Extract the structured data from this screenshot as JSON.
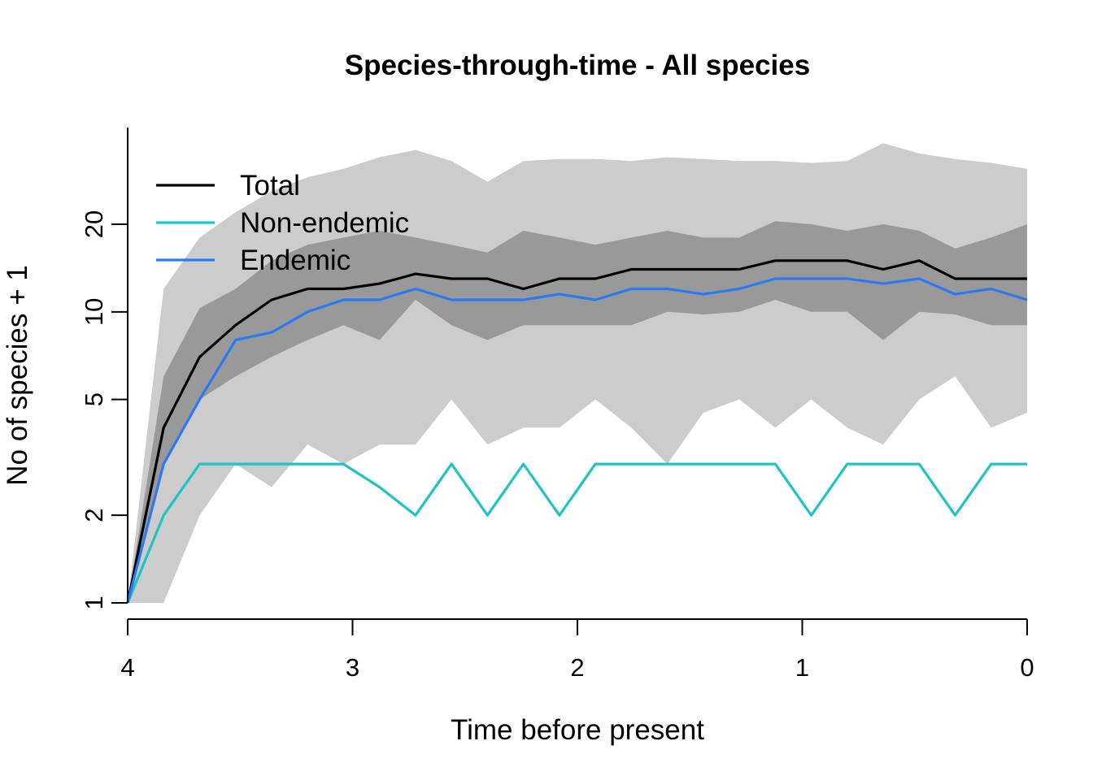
{
  "chart_data": {
    "type": "line",
    "title": "Species-through-time - All species",
    "xlabel": "Time before present",
    "ylabel": "No of species + 1",
    "xlim": [
      4,
      0
    ],
    "ylim": [
      1,
      36
    ],
    "y_scale": "log",
    "x_ticks": [
      4,
      3,
      2,
      1,
      0
    ],
    "y_ticks": [
      1,
      2,
      5,
      10,
      20
    ],
    "grid": false,
    "legend_position": "top-left",
    "colors": {
      "outer_band": "#cccccc",
      "inner_band": "#999999",
      "Total": "#000000",
      "Non-endemic": "#1fc4c4",
      "Endemic": "#2a7bf2"
    },
    "x": [
      4.0,
      3.84,
      3.68,
      3.52,
      3.36,
      3.2,
      3.04,
      2.88,
      2.72,
      2.56,
      2.4,
      2.24,
      2.08,
      1.92,
      1.76,
      1.6,
      1.44,
      1.28,
      1.12,
      0.96,
      0.8,
      0.64,
      0.48,
      0.32,
      0.16,
      0.0
    ],
    "series": [
      {
        "name": "Total",
        "values": [
          1,
          4,
          7,
          9,
          11,
          12,
          12,
          12.5,
          13.5,
          13,
          13,
          12,
          13,
          13,
          14,
          14,
          14,
          14,
          15,
          15,
          15,
          14,
          15,
          13,
          13,
          13
        ]
      },
      {
        "name": "Non-endemic",
        "values": [
          1,
          2,
          3,
          3,
          3,
          3,
          3,
          2.5,
          2,
          3,
          2,
          3,
          2,
          3,
          3,
          3,
          3,
          3,
          3,
          2,
          3,
          3,
          3,
          2,
          3,
          3
        ]
      },
      {
        "name": "Endemic",
        "values": [
          1,
          3,
          5,
          8,
          8.5,
          10,
          11,
          11,
          12,
          11,
          11,
          11,
          11.5,
          11,
          12,
          12,
          11.5,
          12,
          13,
          13,
          13,
          12.5,
          13,
          11.5,
          12,
          11
        ]
      }
    ],
    "bands": {
      "outer_upper": [
        1,
        12,
        18,
        22,
        26,
        29,
        31,
        34,
        36,
        33,
        28,
        33,
        33.5,
        33.5,
        33,
        34,
        33.5,
        33,
        33,
        32.5,
        33,
        38,
        35,
        33.5,
        32.5,
        31
      ],
      "outer_lower": [
        1,
        1,
        2,
        3,
        2.5,
        3.5,
        3,
        3.5,
        3.5,
        5,
        3.5,
        4,
        4,
        5,
        4,
        3,
        4.5,
        5,
        4,
        5,
        4,
        3.5,
        5,
        6,
        4,
        4.5
      ],
      "inner_upper": [
        1,
        6,
        10.3,
        12,
        15,
        17,
        18,
        19,
        18,
        17,
        16,
        19,
        18,
        17,
        18,
        19,
        18,
        18,
        20.5,
        20,
        19,
        20,
        19,
        16.5,
        18,
        20
      ],
      "inner_lower": [
        1,
        3,
        5,
        6,
        7,
        8,
        9,
        8,
        11,
        9,
        8,
        9,
        9,
        9,
        9,
        10,
        9.8,
        10,
        11,
        10,
        10,
        8,
        10,
        9.8,
        9,
        9
      ]
    }
  }
}
